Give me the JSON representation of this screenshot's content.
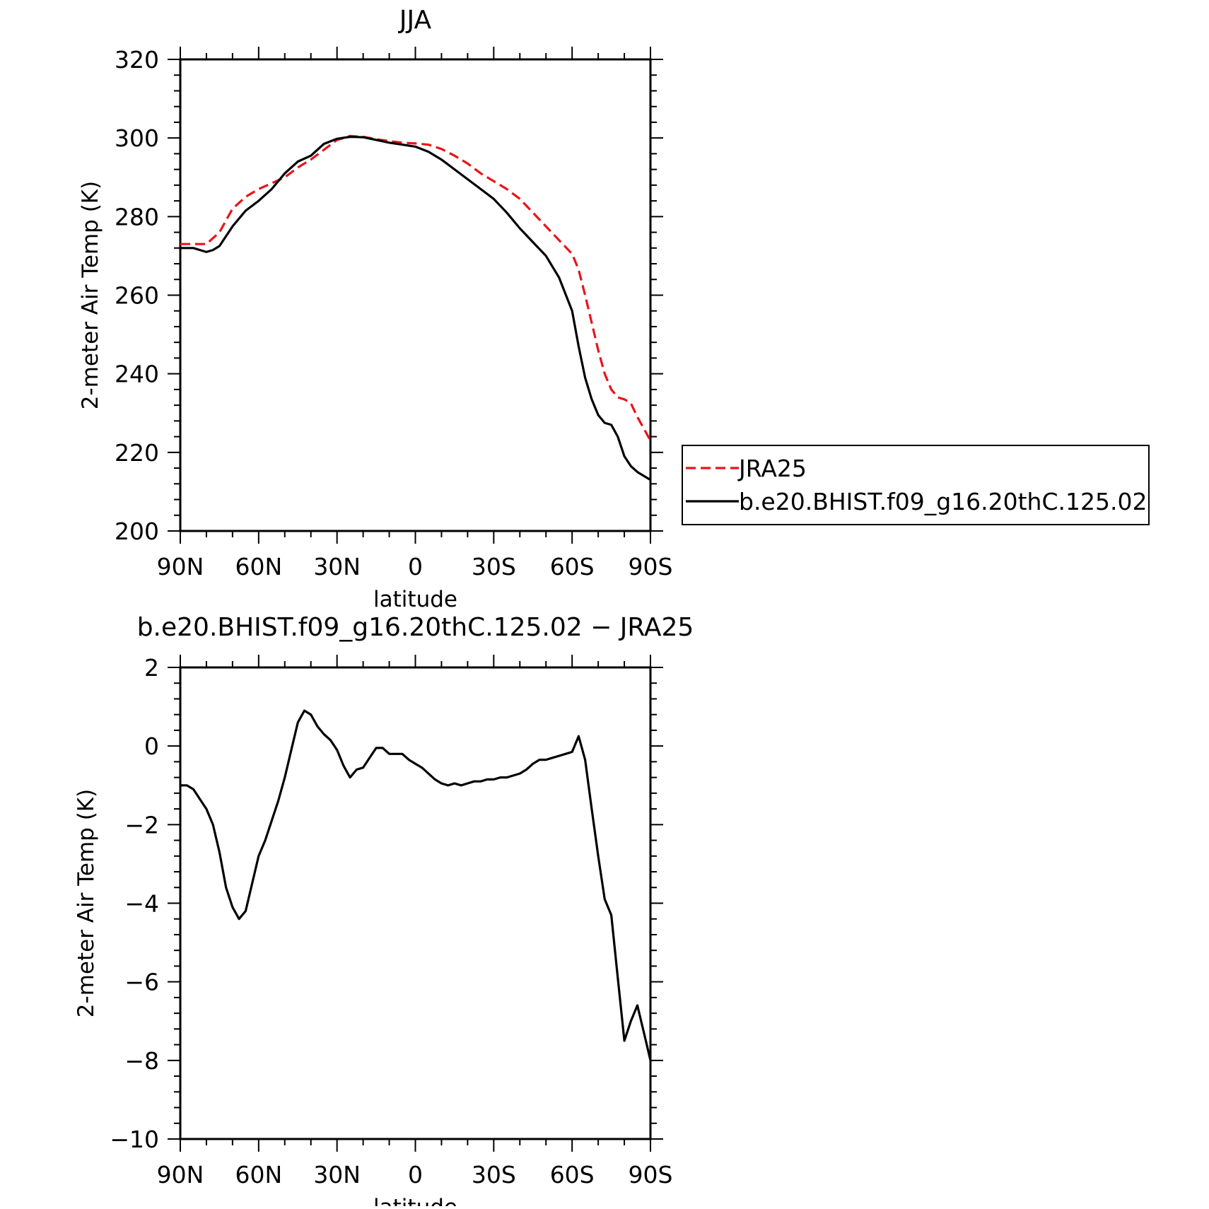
{
  "chart_data": [
    {
      "type": "line",
      "title": "JJA",
      "xlabel": "latitude",
      "ylabel": "2-meter Air Temp (K)",
      "xlim": [
        90,
        -90
      ],
      "ylim": [
        200,
        320
      ],
      "xticks": [
        90,
        60,
        30,
        0,
        -30,
        -60,
        -90
      ],
      "xtick_labels": [
        "90N",
        "60N",
        "30N",
        "0",
        "30S",
        "60S",
        "90S"
      ],
      "yticks": [
        200,
        220,
        240,
        260,
        280,
        300,
        320
      ],
      "ytick_labels": [
        "200",
        "220",
        "240",
        "260",
        "280",
        "300",
        "320"
      ],
      "legend_position": "right",
      "series": [
        {
          "name": "JRA25",
          "color": "#e8141b",
          "dash": "dashed",
          "x": [
            90,
            85,
            80,
            75,
            70,
            65,
            60,
            55,
            50,
            45,
            40,
            35,
            30,
            25,
            20,
            15,
            10,
            5,
            0,
            -5,
            -10,
            -15,
            -20,
            -25,
            -30,
            -35,
            -40,
            -45,
            -50,
            -55,
            -60,
            -62.5,
            -65,
            -67.5,
            -70,
            -72.5,
            -75,
            -77.5,
            -80,
            -82.5,
            -85,
            -87.5,
            -90
          ],
          "y": [
            273,
            273,
            273,
            276,
            282,
            285,
            287,
            288.5,
            290,
            292.5,
            294.5,
            297,
            299.5,
            300.5,
            300.3,
            299.7,
            299.2,
            298.8,
            298.6,
            298.3,
            297.2,
            295.5,
            293.5,
            291,
            289,
            287,
            284.5,
            281,
            277.5,
            274,
            270.5,
            266.5,
            260,
            253,
            246,
            240,
            236,
            234,
            233.5,
            232.5,
            229,
            226,
            223
          ]
        },
        {
          "name": "b.e20.BHIST.f09_g16.20thC.125.02",
          "color": "#000000",
          "dash": "solid",
          "x": [
            90,
            85,
            82.5,
            80,
            77.5,
            75,
            70,
            65,
            60,
            55,
            50,
            45,
            40,
            35,
            30,
            25,
            20,
            15,
            10,
            5,
            0,
            -5,
            -10,
            -15,
            -20,
            -25,
            -30,
            -35,
            -40,
            -45,
            -50,
            -55,
            -60,
            -62.5,
            -65,
            -67.5,
            -70,
            -72.5,
            -75,
            -77.5,
            -80,
            -82.5,
            -85,
            -87.5,
            -90
          ],
          "y": [
            272,
            272,
            271.5,
            271,
            271.5,
            272.5,
            277.5,
            281.5,
            284,
            287,
            291,
            294,
            295.5,
            298.5,
            299.8,
            300.3,
            300.2,
            299.5,
            298.8,
            298.3,
            297.8,
            296.5,
            294.5,
            292,
            289.5,
            287,
            284.5,
            281,
            277,
            273.5,
            270,
            264.5,
            256,
            247,
            239,
            233.5,
            229.5,
            227.5,
            227,
            224,
            219,
            216.5,
            215,
            214,
            213
          ]
        }
      ]
    },
    {
      "type": "line",
      "title": "b.e20.BHIST.f09_g16.20thC.125.02 − JRA25",
      "xlabel": "latitude",
      "ylabel": "2-meter Air Temp (K)",
      "xlim": [
        90,
        -90
      ],
      "ylim": [
        -10,
        2
      ],
      "xticks": [
        90,
        60,
        30,
        0,
        -30,
        -60,
        -90
      ],
      "xtick_labels": [
        "90N",
        "60N",
        "30N",
        "0",
        "30S",
        "60S",
        "90S"
      ],
      "yticks": [
        -10,
        -8,
        -6,
        -4,
        -2,
        0,
        2
      ],
      "ytick_labels": [
        "−10",
        "−8",
        "−6",
        "−4",
        "−2",
        "0",
        "2"
      ],
      "series": [
        {
          "color": "#000000",
          "dash": "solid",
          "x": [
            90,
            87.5,
            85,
            82.5,
            80,
            77.5,
            75,
            72.5,
            70,
            67.5,
            65,
            62.5,
            60,
            57.5,
            55,
            52.5,
            50,
            47.5,
            45,
            42.5,
            40,
            37.5,
            35,
            32.5,
            30,
            27.5,
            25,
            22.5,
            20,
            17.5,
            15,
            12.5,
            10,
            7.5,
            5,
            2.5,
            0,
            -2.5,
            -5,
            -7.5,
            -10,
            -12.5,
            -15,
            -17.5,
            -20,
            -22.5,
            -25,
            -27.5,
            -30,
            -32.5,
            -35,
            -37.5,
            -40,
            -42.5,
            -45,
            -47.5,
            -50,
            -52.5,
            -55,
            -57.5,
            -60,
            -62.5,
            -65,
            -67.5,
            -70,
            -72.5,
            -75,
            -77.5,
            -80,
            -82.5,
            -85,
            -87.5,
            -90
          ],
          "y": [
            -1.0,
            -1.0,
            -1.1,
            -1.35,
            -1.6,
            -2.0,
            -2.7,
            -3.6,
            -4.1,
            -4.4,
            -4.2,
            -3.5,
            -2.8,
            -2.4,
            -1.9,
            -1.4,
            -0.8,
            -0.1,
            0.6,
            0.9,
            0.8,
            0.5,
            0.3,
            0.15,
            -0.1,
            -0.5,
            -0.8,
            -0.6,
            -0.55,
            -0.3,
            -0.05,
            -0.05,
            -0.2,
            -0.2,
            -0.2,
            -0.35,
            -0.45,
            -0.55,
            -0.7,
            -0.85,
            -0.95,
            -1.0,
            -0.95,
            -1.0,
            -0.95,
            -0.9,
            -0.9,
            -0.85,
            -0.85,
            -0.8,
            -0.8,
            -0.75,
            -0.7,
            -0.6,
            -0.45,
            -0.35,
            -0.35,
            -0.3,
            -0.25,
            -0.2,
            -0.15,
            0.25,
            -0.35,
            -1.6,
            -2.8,
            -3.9,
            -4.3,
            -5.9,
            -7.5,
            -7.0,
            -6.6,
            -7.3,
            -8.0
          ]
        }
      ]
    }
  ]
}
